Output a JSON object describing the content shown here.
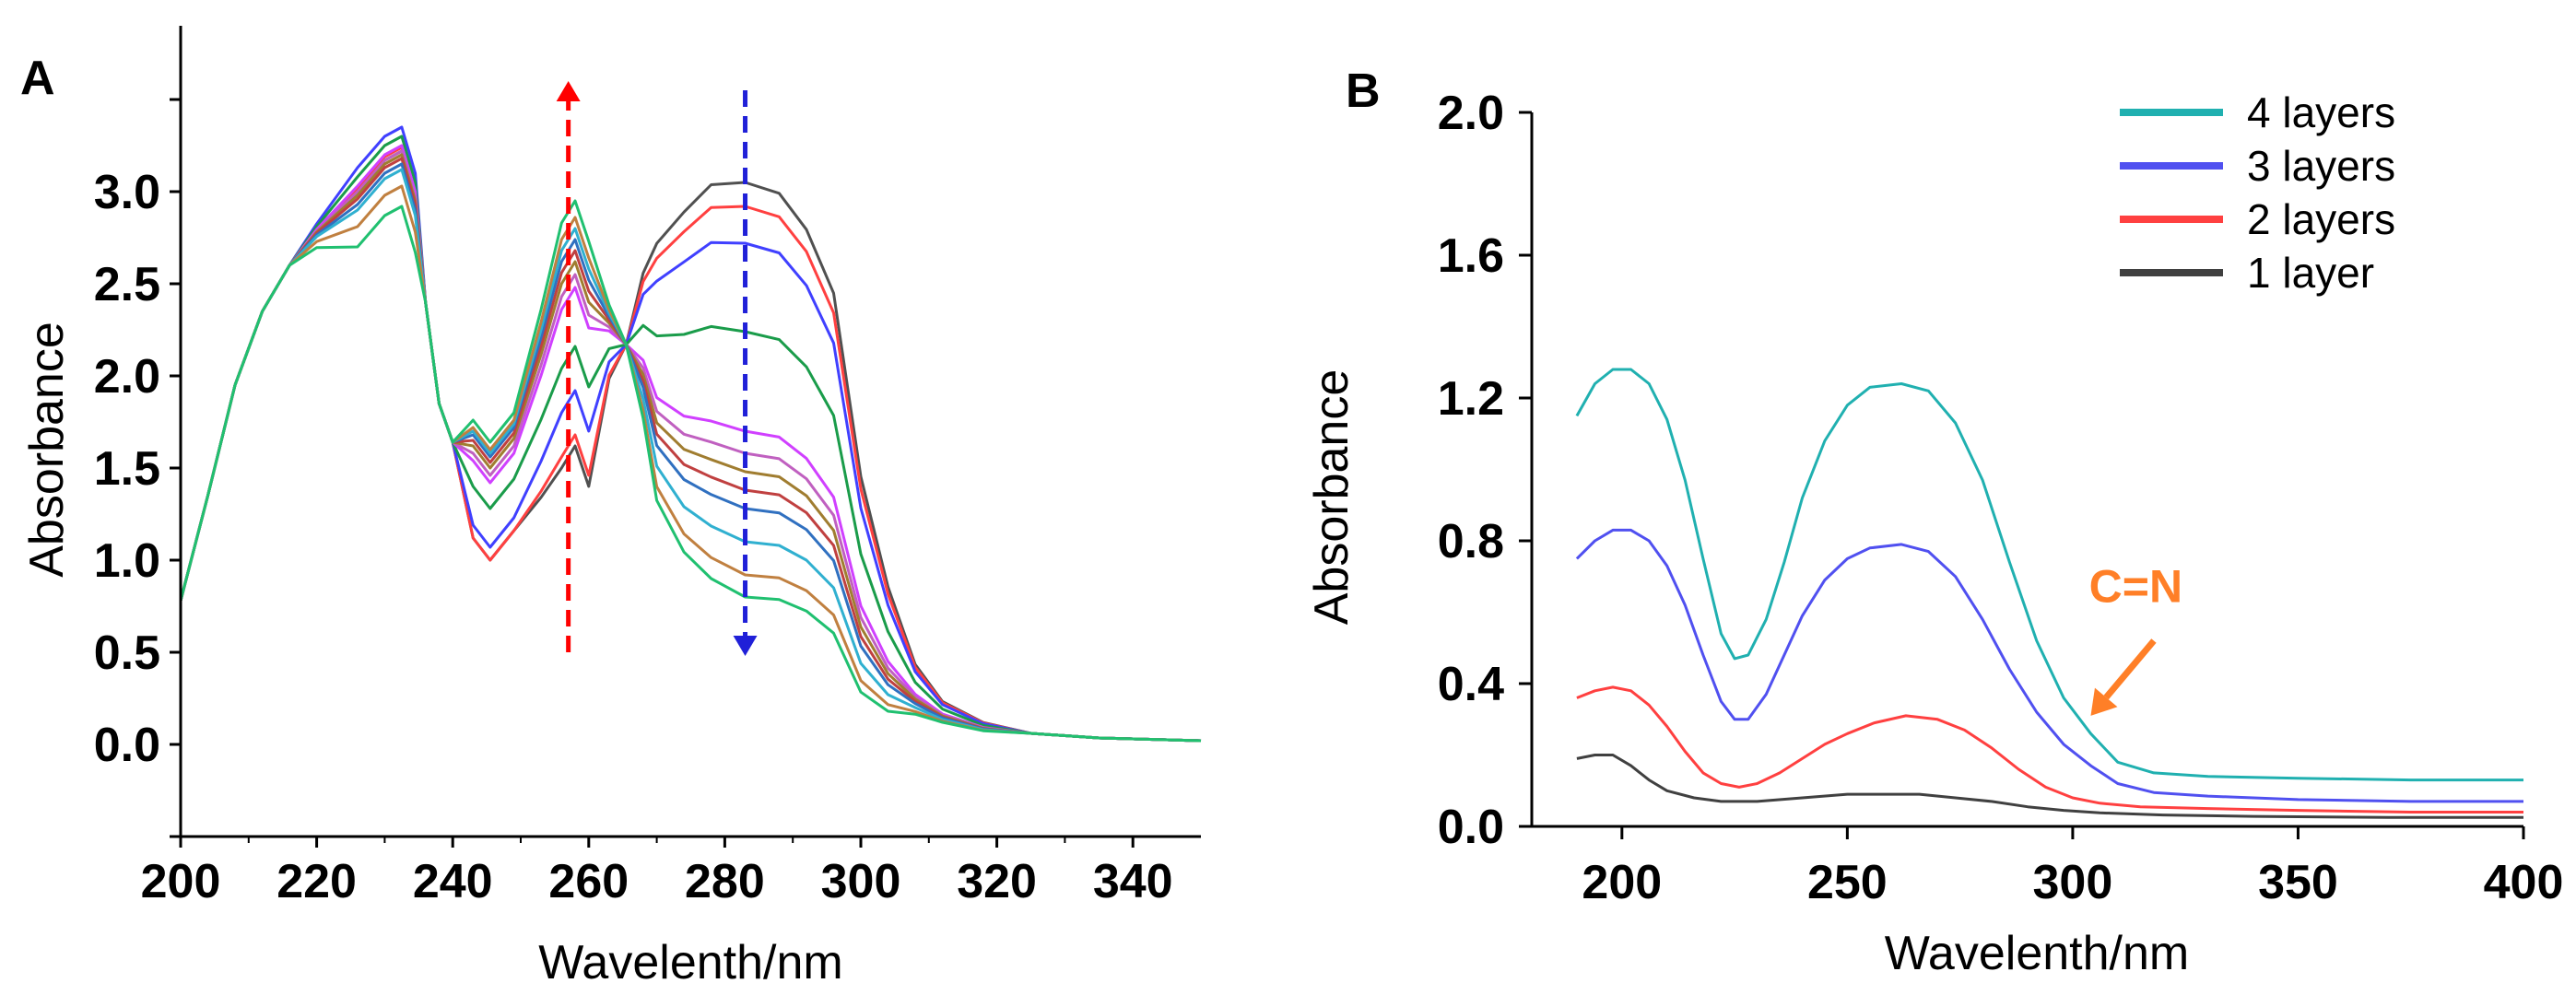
{
  "chart_data": [
    {
      "panel": "A",
      "type": "line",
      "xlabel": "Wavelenth/nm",
      "ylabel": "Absorbance",
      "xlim": [
        200,
        350
      ],
      "ylim": [
        -0.5,
        3.9
      ],
      "xticks": [
        200,
        220,
        240,
        260,
        280,
        300,
        320,
        340
      ],
      "yticks": [
        "0.0",
        "0.5",
        "1.0",
        "1.5",
        "2.0",
        "2.5",
        "3.0"
      ],
      "grid": false,
      "annotations": [
        {
          "name": "increase-arrow",
          "direction": "up",
          "x": 257,
          "y_from": 0.5,
          "y_to": 3.6,
          "color": "#ff0000"
        },
        {
          "name": "decrease-arrow",
          "direction": "down",
          "x": 283,
          "y_from": 3.55,
          "y_to": 0.48,
          "color": "#2020d8"
        }
      ],
      "series": [
        {
          "name": "curve-1",
          "color": "#505050",
          "p1": 3.22,
          "v": 1.0,
          "p2": 1.62,
          "p3": 3.05
        },
        {
          "name": "curve-2",
          "color": "#ff4040",
          "p1": 3.24,
          "v": 1.0,
          "p2": 1.68,
          "p3": 2.92
        },
        {
          "name": "curve-3",
          "color": "#4040ff",
          "p1": 3.35,
          "v": 1.07,
          "p2": 1.92,
          "p3": 2.72
        },
        {
          "name": "curve-4",
          "color": "#1a9c4a",
          "p1": 3.3,
          "v": 1.28,
          "p2": 2.16,
          "p3": 2.24
        },
        {
          "name": "curve-5",
          "color": "#d040ff",
          "p1": 3.25,
          "v": 1.42,
          "p2": 2.48,
          "p3": 1.7
        },
        {
          "name": "curve-6",
          "color": "#c060c0",
          "p1": 3.22,
          "v": 1.46,
          "p2": 2.55,
          "p3": 1.58
        },
        {
          "name": "curve-7",
          "color": "#a07d30",
          "p1": 3.2,
          "v": 1.5,
          "p2": 2.62,
          "p3": 1.48
        },
        {
          "name": "curve-8",
          "color": "#c04040",
          "p1": 3.18,
          "v": 1.53,
          "p2": 2.68,
          "p3": 1.38
        },
        {
          "name": "curve-9",
          "color": "#3070c0",
          "p1": 3.15,
          "v": 1.56,
          "p2": 2.74,
          "p3": 1.28
        },
        {
          "name": "curve-10",
          "color": "#30b0d0",
          "p1": 3.12,
          "v": 1.58,
          "p2": 2.8,
          "p3": 1.1
        },
        {
          "name": "curve-11",
          "color": "#c08040",
          "p1": 3.03,
          "v": 1.6,
          "p2": 2.86,
          "p3": 0.92
        },
        {
          "name": "curve-12",
          "color": "#20c070",
          "p1": 2.92,
          "v": 1.64,
          "p2": 2.95,
          "p3": 0.8
        }
      ]
    },
    {
      "panel": "B",
      "type": "line",
      "xlabel": "Wavelenth/nm",
      "ylabel": "Absorbance",
      "xlim": [
        180,
        400
      ],
      "ylim": [
        0.0,
        2.0
      ],
      "xticks": [
        200,
        250,
        300,
        350,
        400
      ],
      "yticks": [
        "0.0",
        "0.4",
        "0.8",
        "1.2",
        "1.6",
        "2.0"
      ],
      "grid": false,
      "legend_position": "top-right",
      "series": [
        {
          "name": "4 layers",
          "color": "#20b0b0",
          "points": [
            [
              190,
              1.15
            ],
            [
              194,
              1.24
            ],
            [
              198,
              1.28
            ],
            [
              202,
              1.28
            ],
            [
              206,
              1.24
            ],
            [
              210,
              1.14
            ],
            [
              214,
              0.97
            ],
            [
              218,
              0.75
            ],
            [
              222,
              0.54
            ],
            [
              225,
              0.47
            ],
            [
              228,
              0.48
            ],
            [
              232,
              0.58
            ],
            [
              236,
              0.74
            ],
            [
              240,
              0.92
            ],
            [
              245,
              1.08
            ],
            [
              250,
              1.18
            ],
            [
              255,
              1.23
            ],
            [
              262,
              1.24
            ],
            [
              268,
              1.22
            ],
            [
              274,
              1.13
            ],
            [
              280,
              0.97
            ],
            [
              286,
              0.74
            ],
            [
              292,
              0.52
            ],
            [
              298,
              0.36
            ],
            [
              304,
              0.26
            ],
            [
              310,
              0.18
            ],
            [
              318,
              0.15
            ],
            [
              330,
              0.14
            ],
            [
              350,
              0.135
            ],
            [
              375,
              0.13
            ],
            [
              400,
              0.13
            ]
          ]
        },
        {
          "name": "3 layers",
          "color": "#5050f0",
          "points": [
            [
              190,
              0.75
            ],
            [
              194,
              0.8
            ],
            [
              198,
              0.83
            ],
            [
              202,
              0.83
            ],
            [
              206,
              0.8
            ],
            [
              210,
              0.73
            ],
            [
              214,
              0.62
            ],
            [
              218,
              0.48
            ],
            [
              222,
              0.35
            ],
            [
              225,
              0.3
            ],
            [
              228,
              0.3
            ],
            [
              232,
              0.37
            ],
            [
              236,
              0.48
            ],
            [
              240,
              0.59
            ],
            [
              245,
              0.69
            ],
            [
              250,
              0.75
            ],
            [
              255,
              0.78
            ],
            [
              262,
              0.79
            ],
            [
              268,
              0.77
            ],
            [
              274,
              0.7
            ],
            [
              280,
              0.58
            ],
            [
              286,
              0.44
            ],
            [
              292,
              0.32
            ],
            [
              298,
              0.23
            ],
            [
              304,
              0.17
            ],
            [
              310,
              0.12
            ],
            [
              318,
              0.095
            ],
            [
              330,
              0.085
            ],
            [
              350,
              0.075
            ],
            [
              375,
              0.07
            ],
            [
              400,
              0.07
            ]
          ]
        },
        {
          "name": "2 layers",
          "color": "#ff4040",
          "points": [
            [
              190,
              0.36
            ],
            [
              194,
              0.38
            ],
            [
              198,
              0.39
            ],
            [
              202,
              0.38
            ],
            [
              206,
              0.34
            ],
            [
              210,
              0.28
            ],
            [
              214,
              0.21
            ],
            [
              218,
              0.15
            ],
            [
              222,
              0.12
            ],
            [
              226,
              0.11
            ],
            [
              230,
              0.12
            ],
            [
              235,
              0.15
            ],
            [
              240,
              0.19
            ],
            [
              245,
              0.23
            ],
            [
              250,
              0.26
            ],
            [
              256,
              0.29
            ],
            [
              263,
              0.31
            ],
            [
              270,
              0.3
            ],
            [
              276,
              0.27
            ],
            [
              282,
              0.22
            ],
            [
              288,
              0.16
            ],
            [
              294,
              0.11
            ],
            [
              300,
              0.08
            ],
            [
              306,
              0.065
            ],
            [
              315,
              0.055
            ],
            [
              330,
              0.05
            ],
            [
              350,
              0.045
            ],
            [
              375,
              0.04
            ],
            [
              400,
              0.04
            ]
          ]
        },
        {
          "name": "1 layer",
          "color": "#404040",
          "points": [
            [
              190,
              0.19
            ],
            [
              194,
              0.2
            ],
            [
              198,
              0.2
            ],
            [
              202,
              0.17
            ],
            [
              206,
              0.13
            ],
            [
              210,
              0.1
            ],
            [
              216,
              0.08
            ],
            [
              222,
              0.07
            ],
            [
              230,
              0.07
            ],
            [
              240,
              0.08
            ],
            [
              250,
              0.09
            ],
            [
              258,
              0.09
            ],
            [
              266,
              0.09
            ],
            [
              274,
              0.08
            ],
            [
              282,
              0.07
            ],
            [
              290,
              0.055
            ],
            [
              298,
              0.045
            ],
            [
              306,
              0.038
            ],
            [
              320,
              0.032
            ],
            [
              340,
              0.028
            ],
            [
              370,
              0.025
            ],
            [
              400,
              0.025
            ]
          ]
        }
      ],
      "annotations": [
        {
          "name": "cn-label",
          "text": "C=N",
          "color": "#ff7f27",
          "x": 314,
          "y": 0.68
        },
        {
          "name": "cn-arrow",
          "color": "#ff7f27",
          "x_from": 318,
          "y_from": 0.52,
          "x_to": 304,
          "y_to": 0.31
        }
      ]
    }
  ],
  "figure": {
    "panel_a_label": "A",
    "panel_b_label": "B"
  }
}
